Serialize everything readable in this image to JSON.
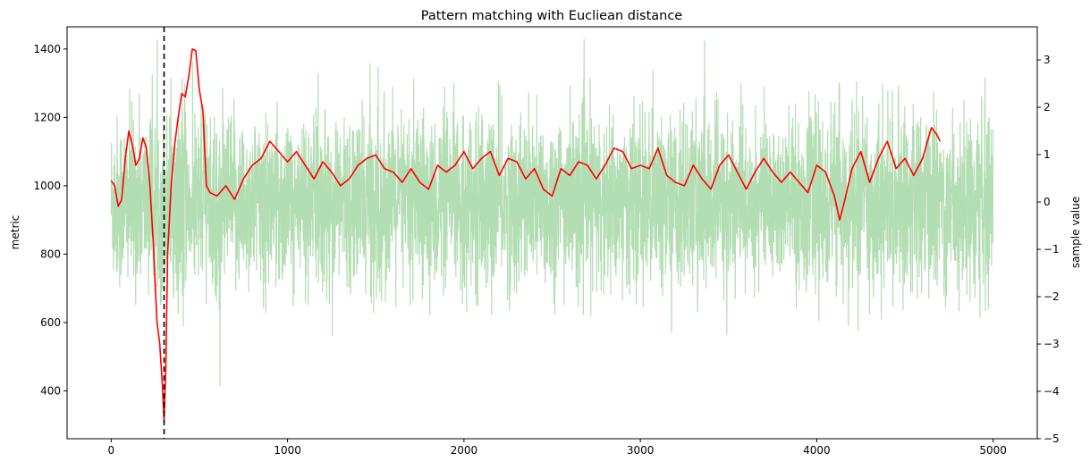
{
  "chart_data": {
    "type": "line",
    "title": "Pattern matching with Eucliean distance",
    "ylabel_left": "metric",
    "ylabel_right": "sample value",
    "xlim": [
      -250,
      5250
    ],
    "ylim_left": [
      260,
      1465
    ],
    "ylim_right": [
      -5,
      3.7
    ],
    "x_ticks": [
      0,
      1000,
      2000,
      3000,
      4000,
      5000
    ],
    "y_ticks_left": [
      400,
      600,
      800,
      1000,
      1200,
      1400
    ],
    "y_ticks_right": [
      -5,
      -4,
      -3,
      -2,
      -1,
      0,
      1,
      2,
      3
    ],
    "match_marker_x": 300,
    "colors": {
      "metric": "#ff0000",
      "sample": "#2ca02c",
      "sample_opacity": 0.36,
      "marker": "#000000"
    },
    "series": [
      {
        "axis": "left",
        "x": [
          0,
          20,
          40,
          60,
          80,
          100,
          120,
          140,
          160,
          180,
          200,
          220,
          240,
          260,
          275,
          290,
          300,
          310,
          320,
          340,
          360,
          380,
          400,
          420,
          440,
          460,
          480,
          500,
          520,
          540,
          560,
          600,
          650,
          700,
          750,
          800,
          850,
          900,
          950,
          1000,
          1050,
          1100,
          1150,
          1200,
          1250,
          1300,
          1350,
          1400,
          1450,
          1500,
          1550,
          1600,
          1650,
          1700,
          1750,
          1800,
          1850,
          1900,
          1950,
          2000,
          2050,
          2100,
          2150,
          2200,
          2250,
          2300,
          2350,
          2400,
          2450,
          2500,
          2550,
          2600,
          2650,
          2700,
          2750,
          2800,
          2850,
          2900,
          2950,
          3000,
          3050,
          3100,
          3150,
          3200,
          3250,
          3300,
          3350,
          3400,
          3450,
          3500,
          3550,
          3600,
          3650,
          3700,
          3750,
          3800,
          3850,
          3900,
          3950,
          4000,
          4050,
          4100,
          4130,
          4160,
          4200,
          4250,
          4300,
          4350,
          4400,
          4450,
          4500,
          4550,
          4600,
          4650,
          4680,
          4700
        ],
        "y": [
          1015,
          1000,
          940,
          960,
          1080,
          1160,
          1120,
          1060,
          1080,
          1140,
          1110,
          1000,
          820,
          600,
          540,
          420,
          310,
          470,
          800,
          1000,
          1120,
          1200,
          1270,
          1260,
          1320,
          1400,
          1395,
          1280,
          1220,
          1000,
          980,
          970,
          1000,
          960,
          1020,
          1060,
          1080,
          1130,
          1100,
          1070,
          1100,
          1060,
          1020,
          1070,
          1040,
          1000,
          1020,
          1060,
          1080,
          1090,
          1050,
          1040,
          1010,
          1050,
          1010,
          990,
          1060,
          1040,
          1060,
          1100,
          1050,
          1080,
          1100,
          1030,
          1080,
          1070,
          1020,
          1050,
          990,
          970,
          1050,
          1030,
          1070,
          1060,
          1020,
          1060,
          1110,
          1100,
          1050,
          1060,
          1050,
          1110,
          1030,
          1010,
          1000,
          1060,
          1020,
          990,
          1060,
          1090,
          1040,
          990,
          1040,
          1080,
          1040,
          1010,
          1040,
          1010,
          980,
          1060,
          1040,
          970,
          900,
          960,
          1050,
          1100,
          1010,
          1080,
          1130,
          1050,
          1080,
          1030,
          1080,
          1170,
          1150,
          1130
        ]
      },
      {
        "axis": "right",
        "name": "",
        "points": 5000,
        "noise_sd": 0.9,
        "spike_range": [
          -2.5,
          3.0
        ]
      }
    ]
  }
}
